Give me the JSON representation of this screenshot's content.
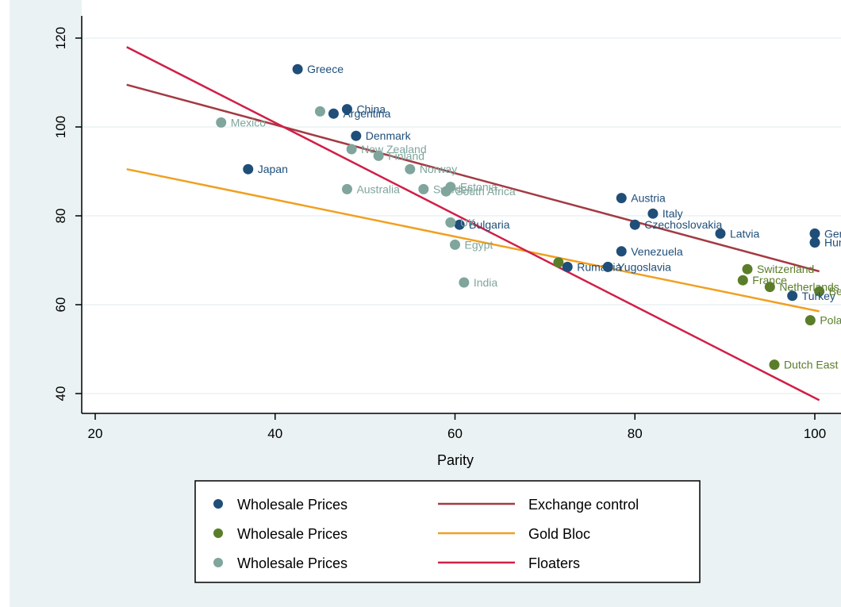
{
  "chart_data": {
    "type": "scatter",
    "title": "",
    "xlabel": "Parity",
    "ylabel": "",
    "xlim": [
      18,
      102
    ],
    "ylim": [
      37,
      122
    ],
    "xticks": [
      20,
      40,
      60,
      80,
      100
    ],
    "yticks": [
      40,
      60,
      80,
      100,
      120
    ],
    "grid": "horizontal",
    "legend_position": "bottom",
    "colors": {
      "exchange_points": "#1f4e79",
      "gold_points": "#5a7d2a",
      "floater_points": "#7fa59c",
      "exchange_line": "#a33a43",
      "gold_line": "#f0a020",
      "floater_line": "#d01f47"
    },
    "series": [
      {
        "name": "Wholesale Prices",
        "color_key": "exchange_points",
        "points": [
          {
            "x": 42.5,
            "y": 113,
            "label": "Greece"
          },
          {
            "x": 48,
            "y": 104,
            "label": "China"
          },
          {
            "x": 46.5,
            "y": 103,
            "label": "Argentina"
          },
          {
            "x": 49,
            "y": 98,
            "label": "Denmark"
          },
          {
            "x": 37,
            "y": 90.5,
            "label": "Japan"
          },
          {
            "x": 78.5,
            "y": 84,
            "label": "Austria"
          },
          {
            "x": 82,
            "y": 80.5,
            "label": "Italy"
          },
          {
            "x": 80,
            "y": 78,
            "label": "Czechoslovakia"
          },
          {
            "x": 89.5,
            "y": 76,
            "label": "Latvia"
          },
          {
            "x": 100,
            "y": 76,
            "label": "Germany"
          },
          {
            "x": 100,
            "y": 74,
            "label": "Hungary"
          },
          {
            "x": 60.5,
            "y": 78,
            "label": "Bulgaria"
          },
          {
            "x": 78.5,
            "y": 72,
            "label": "Venezuela"
          },
          {
            "x": 72.5,
            "y": 68.5,
            "label": "Rumania"
          },
          {
            "x": 77,
            "y": 68.5,
            "label": "Yugoslavia"
          },
          {
            "x": 97.5,
            "y": 62,
            "label": "Turkey"
          }
        ]
      },
      {
        "name": "Wholesale Prices",
        "color_key": "gold_points",
        "points": [
          {
            "x": 92.5,
            "y": 68,
            "label": "Switzerland"
          },
          {
            "x": 92,
            "y": 65.5,
            "label": "France"
          },
          {
            "x": 95,
            "y": 64,
            "label": "Netherlands"
          },
          {
            "x": 100.5,
            "y": 63,
            "label": "Belgium"
          },
          {
            "x": 99.5,
            "y": 56.5,
            "label": "Poland"
          },
          {
            "x": 95.5,
            "y": 46.5,
            "label": "Dutch East Indies"
          },
          {
            "x": 71.5,
            "y": 69.5,
            "label": ""
          }
        ]
      },
      {
        "name": "Wholesale Prices",
        "color_key": "floater_points",
        "points": [
          {
            "x": 34,
            "y": 101,
            "label": "Mexico"
          },
          {
            "x": 45,
            "y": 103.5,
            "label": ""
          },
          {
            "x": 48.5,
            "y": 95,
            "label": "New Zealand"
          },
          {
            "x": 51.5,
            "y": 93.5,
            "label": "Finland"
          },
          {
            "x": 55,
            "y": 90.5,
            "label": "Norway"
          },
          {
            "x": 48,
            "y": 86,
            "label": "Australia"
          },
          {
            "x": 56.5,
            "y": 86,
            "label": "Sweden"
          },
          {
            "x": 59.5,
            "y": 86.5,
            "label": "Estonia"
          },
          {
            "x": 59,
            "y": 85.5,
            "label": "South Africa"
          },
          {
            "x": 59.5,
            "y": 78.5,
            "label": "UK"
          },
          {
            "x": 60,
            "y": 73.5,
            "label": "Egypt"
          },
          {
            "x": 61,
            "y": 65,
            "label": "India"
          }
        ]
      }
    ],
    "fit_lines": [
      {
        "name": "Exchange control",
        "color_key": "exchange_line",
        "x": [
          23.5,
          100.5
        ],
        "y": [
          109.5,
          67.5
        ]
      },
      {
        "name": "Gold Bloc",
        "color_key": "gold_line",
        "x": [
          23.5,
          100.5
        ],
        "y": [
          90.5,
          58.5
        ]
      },
      {
        "name": "Floaters",
        "color_key": "floater_line",
        "x": [
          23.5,
          100.5
        ],
        "y": [
          118,
          38.5
        ]
      }
    ],
    "legend": [
      {
        "label": "Wholesale Prices",
        "kind": "dot",
        "color_key": "exchange_points"
      },
      {
        "label": "Exchange control",
        "kind": "line",
        "color_key": "exchange_line"
      },
      {
        "label": "Wholesale Prices",
        "kind": "dot",
        "color_key": "gold_points"
      },
      {
        "label": "Gold Bloc",
        "kind": "line",
        "color_key": "gold_line"
      },
      {
        "label": "Wholesale Prices",
        "kind": "dot",
        "color_key": "floater_points"
      },
      {
        "label": "Floaters",
        "kind": "line",
        "color_key": "floater_line"
      }
    ]
  }
}
